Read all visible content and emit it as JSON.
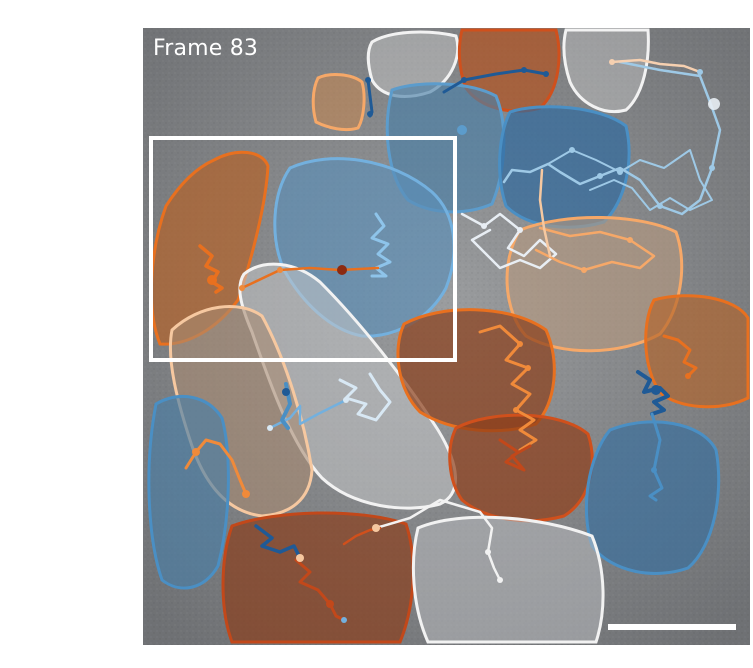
{
  "frame": {
    "label": "Frame 83"
  },
  "colors": {
    "background_gray": "#8a8c8f",
    "orange_light": "#f6a868",
    "orange": "#e8701f",
    "orange_dark": "#c2481a",
    "blue_light": "#9ec9e6",
    "blue": "#4a8fc4",
    "blue_dark": "#1f5a96",
    "white_track": "#f2f2f2",
    "roi_box": "#ffffff",
    "scale_bar": "#ffffff"
  },
  "cell_types": [
    "dark-blue",
    "mid-blue",
    "light-blue",
    "white",
    "peach",
    "orange",
    "dark-orange"
  ]
}
